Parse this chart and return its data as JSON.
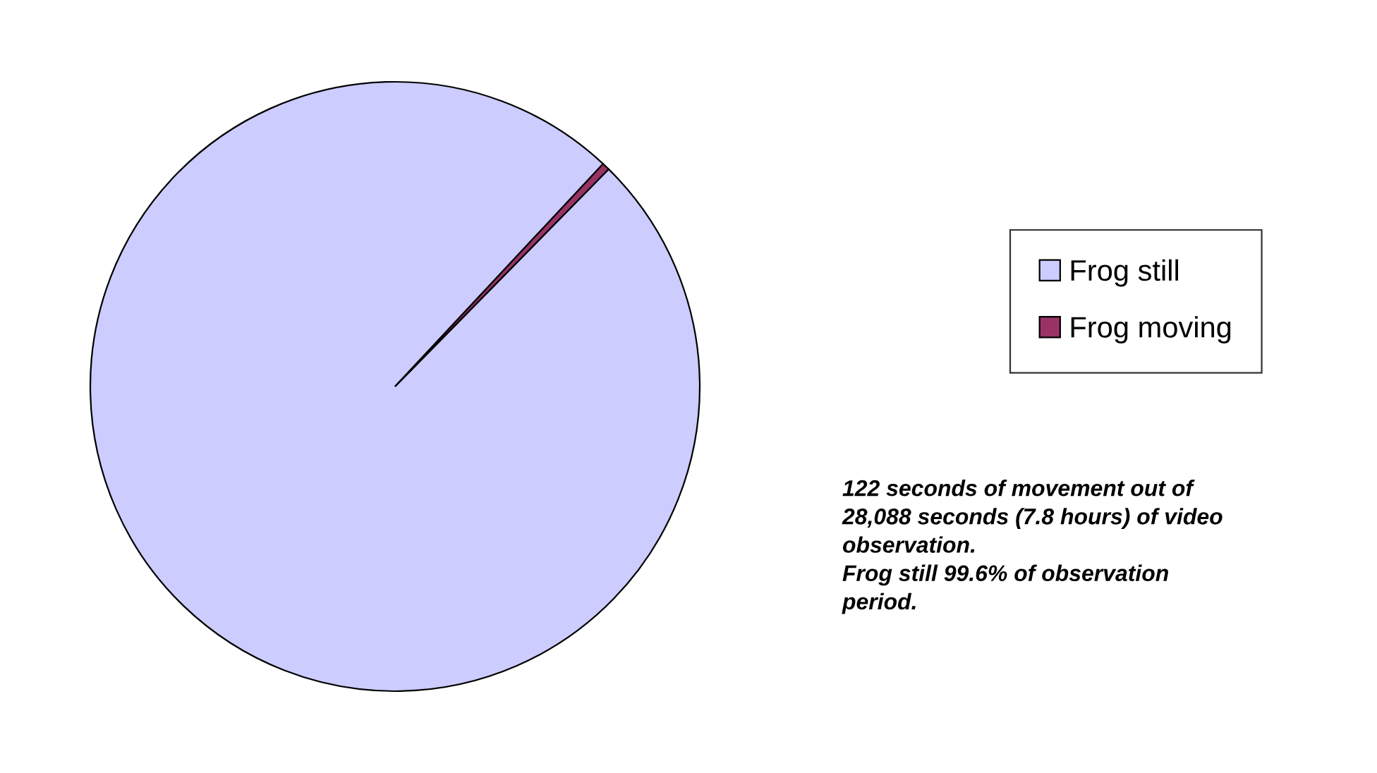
{
  "chart_data": {
    "type": "pie",
    "categories": [
      "Frog still",
      "Frog moving"
    ],
    "values": [
      99.6,
      0.4
    ],
    "colors": [
      "#ccccff",
      "#993366"
    ],
    "legend": "right",
    "annotations": [
      "122 seconds of movement out of\n28,088 seconds (7.8 hours) of video\nobservation.\nFrog still 99.6% of observation\nperiod."
    ]
  }
}
